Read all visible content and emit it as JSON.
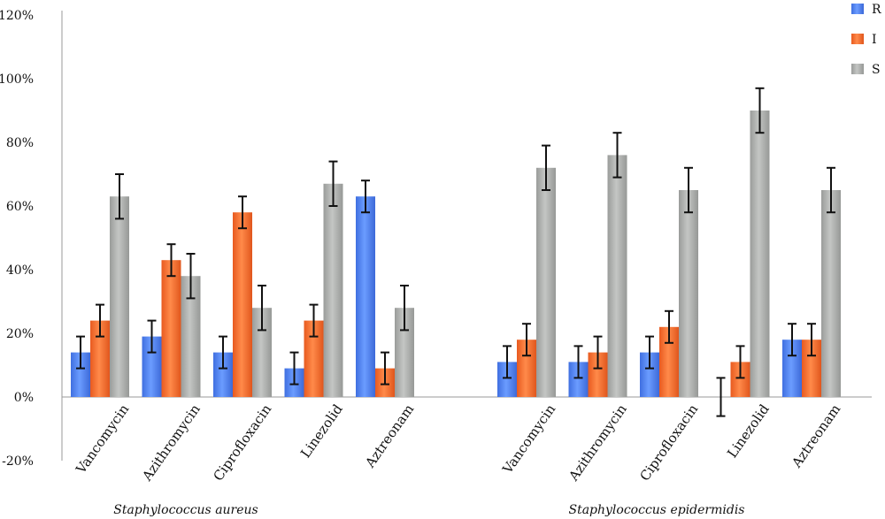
{
  "chart_data": {
    "type": "bar",
    "title": "",
    "xlabel": "",
    "ylabel": "",
    "ylim": [
      -20,
      120
    ],
    "yticks": [
      -20,
      0,
      20,
      40,
      60,
      80,
      100,
      120
    ],
    "ytick_suffix": "%",
    "grid": false,
    "legend_position": "top-right",
    "groups": [
      {
        "label": "Staphylococcus aureus",
        "categories": [
          "Vancomycin",
          "Azithromycin",
          "Ciprofloxacin",
          "Linezolid",
          "Aztreonam"
        ],
        "series": [
          {
            "name": "R",
            "values": [
              14,
              19,
              14,
              9,
              63
            ],
            "errors": [
              5,
              5,
              5,
              5,
              5
            ]
          },
          {
            "name": "I",
            "values": [
              24,
              43,
              58,
              24,
              9
            ],
            "errors": [
              5,
              5,
              5,
              5,
              5
            ]
          },
          {
            "name": "S",
            "values": [
              63,
              38,
              28,
              67,
              28
            ],
            "errors": [
              7,
              7,
              7,
              7,
              7
            ]
          }
        ]
      },
      {
        "label": "Staphylococcus epidermidis",
        "categories": [
          "Vancomycin",
          "Azithromycin",
          "Ciprofloxacin",
          "Linezolid",
          "Aztreonam"
        ],
        "series": [
          {
            "name": "R",
            "values": [
              11,
              11,
              14,
              0,
              18
            ],
            "errors": [
              5,
              5,
              5,
              6,
              5
            ]
          },
          {
            "name": "I",
            "values": [
              18,
              14,
              22,
              11,
              18
            ],
            "errors": [
              5,
              5,
              5,
              5,
              5
            ]
          },
          {
            "name": "S",
            "values": [
              72,
              76,
              65,
              90,
              65
            ],
            "errors": [
              7,
              7,
              7,
              7,
              7
            ]
          }
        ]
      }
    ],
    "colors": {
      "R": "#4a7ff0",
      "I": "#f26b2e",
      "S": "#a8aaa8"
    }
  }
}
